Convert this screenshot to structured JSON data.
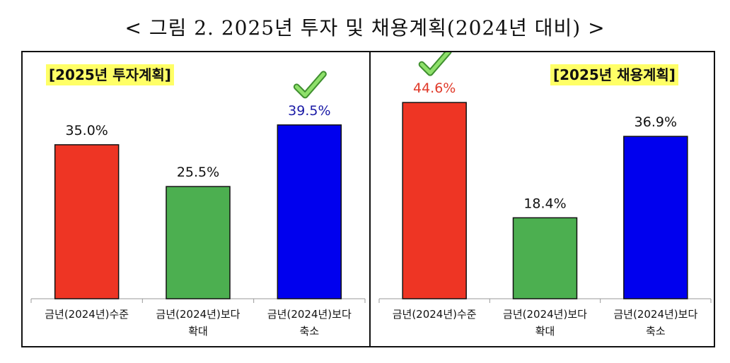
{
  "page_title": "< 그림 2. 2025년 투자 및 채용계획(2024년 대비) >",
  "chart_data": [
    {
      "type": "bar",
      "title": "[2025년 투자계획]",
      "categories": [
        "금년(2024년)수준",
        "금년(2024년)보다 확대",
        "금년(2024년)보다 축소"
      ],
      "category_lines": [
        [
          "금년(2024년)수준"
        ],
        [
          "금년(2024년)보다",
          "확대"
        ],
        [
          "금년(2024년)보다",
          "축소"
        ]
      ],
      "values": [
        35.0,
        25.5,
        39.5
      ],
      "labels": [
        "35.0%",
        "25.5%",
        "39.5%"
      ],
      "unit": "%",
      "colors": [
        "#ee3524",
        "#4caf50",
        "#0000ee"
      ],
      "label_colors": [
        "#111111",
        "#111111",
        "#1a1aa6"
      ],
      "highlight_index": 2,
      "highlight_mark": "checkmark-icon",
      "ylim": [
        0,
        50
      ],
      "grid": false
    },
    {
      "type": "bar",
      "title": "[2025년 채용계획]",
      "categories": [
        "금년(2024년)수준",
        "금년(2024년)보다 확대",
        "금년(2024년)보다 축소"
      ],
      "category_lines": [
        [
          "금년(2024년)수준"
        ],
        [
          "금년(2024년)보다",
          "확대"
        ],
        [
          "금년(2024년)보다",
          "축소"
        ]
      ],
      "values": [
        44.6,
        18.4,
        36.9
      ],
      "labels": [
        "44.6%",
        "18.4%",
        "36.9%"
      ],
      "unit": "%",
      "colors": [
        "#ee3524",
        "#4caf50",
        "#0000ee"
      ],
      "label_colors": [
        "#e03a2a",
        "#111111",
        "#111111"
      ],
      "highlight_index": 0,
      "highlight_mark": "checkmark-icon",
      "ylim": [
        0,
        50
      ],
      "grid": false
    }
  ]
}
